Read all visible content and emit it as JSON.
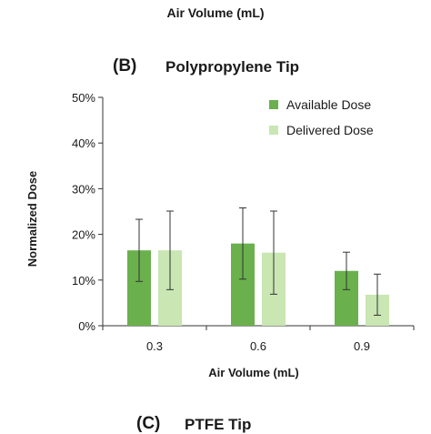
{
  "header": {
    "caption": "Air Volume (mL)"
  },
  "panel": {
    "letter": "(B)",
    "title": "Polypropylene Tip"
  },
  "next_panel": {
    "letter": "(C)",
    "title": "PTFE Tip"
  },
  "colors": {
    "available": "#6ab04c",
    "delivered": "#c9e6b3",
    "axis": "#333333",
    "errorbar": "#333333"
  },
  "chart_data": {
    "type": "bar",
    "title": "Polypropylene Tip",
    "xlabel": "Air Volume (mL)",
    "ylabel": "Normalized Dose",
    "categories": [
      "0.3",
      "0.6",
      "0.9"
    ],
    "ylim": [
      0,
      50
    ],
    "yticks": [
      0,
      10,
      20,
      30,
      40,
      50
    ],
    "ytick_labels": [
      "0%",
      "10%",
      "20%",
      "30%",
      "40%",
      "50%"
    ],
    "legend_position": "top-right",
    "grid": false,
    "series": [
      {
        "name": "Available Dose",
        "values": [
          16.5,
          18,
          12
        ],
        "error": [
          6.8,
          7.8,
          4.1
        ]
      },
      {
        "name": "Delivered Dose",
        "values": [
          16.5,
          16,
          6.8
        ],
        "error": [
          8.6,
          9.1,
          4.5
        ]
      }
    ]
  }
}
